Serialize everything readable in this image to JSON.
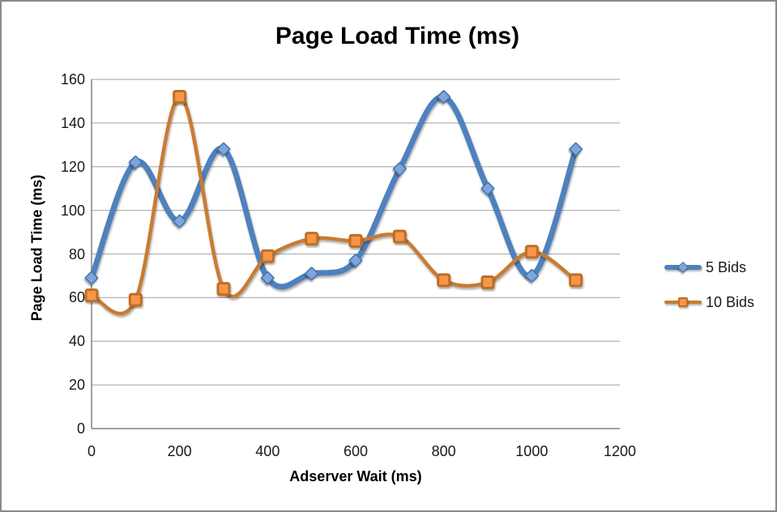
{
  "chart_data": {
    "type": "line",
    "title": "Page Load Time (ms)",
    "xlabel": "Adserver Wait (ms)",
    "ylabel": "Page Load Time (ms)",
    "x": [
      0,
      100,
      200,
      300,
      400,
      500,
      600,
      700,
      800,
      900,
      1000,
      1100
    ],
    "series": [
      {
        "name": "5 Bids",
        "marker": "diamond",
        "line_color": "#4F81BD",
        "marker_fill": "#7DA7DC",
        "marker_border": "#4472A8",
        "values": [
          69,
          122,
          95,
          128,
          69,
          71,
          77,
          119,
          152,
          110,
          70,
          128
        ]
      },
      {
        "name": "10 Bids",
        "marker": "square",
        "line_color": "#C87B32",
        "marker_fill": "#F79646",
        "marker_border": "#BE6E28",
        "values": [
          61,
          59,
          152,
          64,
          79,
          87,
          86,
          88,
          68,
          67,
          81,
          68
        ]
      }
    ],
    "xlim": [
      0,
      1200
    ],
    "ylim": [
      0,
      160
    ],
    "x_ticks": [
      0,
      200,
      400,
      600,
      800,
      1000,
      1200
    ],
    "y_ticks": [
      0,
      20,
      40,
      60,
      80,
      100,
      120,
      140,
      160
    ],
    "grid": "horizontal",
    "gridline_color": "#B3B3B3",
    "axis_color": "#808080",
    "legend_position": "right",
    "smoothed_lines": true
  }
}
